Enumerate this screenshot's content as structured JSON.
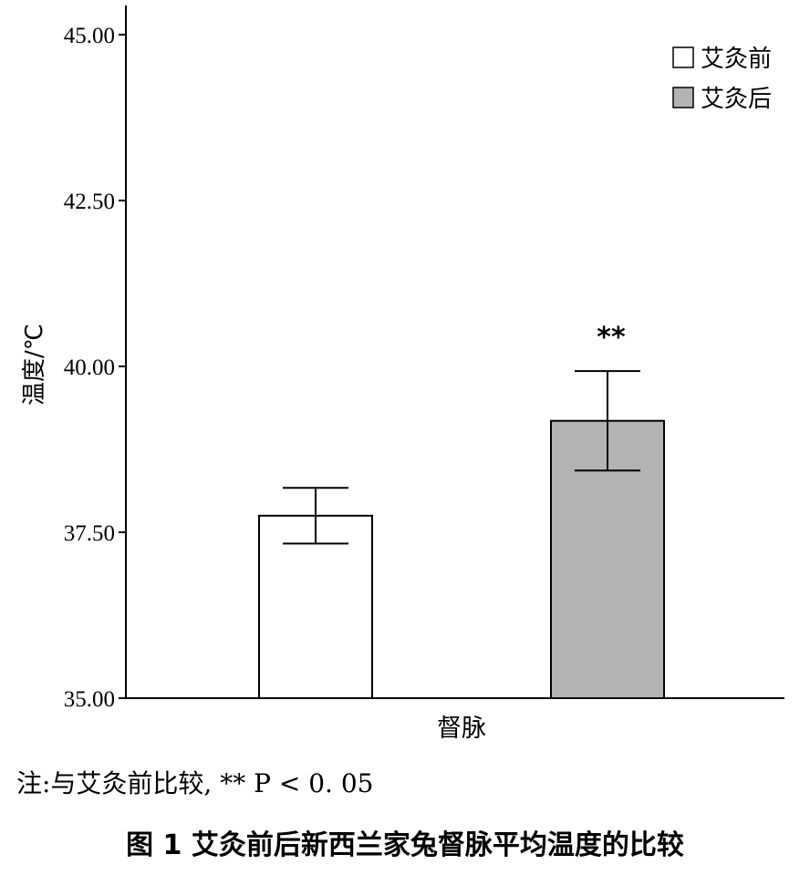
{
  "chart_data": {
    "type": "bar",
    "categories": [
      "督脉"
    ],
    "series": [
      {
        "name": "艾灸前",
        "values": [
          37.75
        ],
        "error": [
          0.42
        ],
        "color": "#ffffff"
      },
      {
        "name": "艾灸后",
        "values": [
          39.18
        ],
        "error": [
          0.75
        ],
        "color": "#b3b3b3"
      }
    ],
    "ylabel": "温度/℃",
    "ylim": [
      35.0,
      45.0
    ],
    "yticks": [
      "35.00",
      "37.50",
      "40.00",
      "42.50",
      "45.00"
    ],
    "significance": "**",
    "legend_position": "top-right",
    "grid": false
  },
  "note": "注:与艾灸前比较, ** P < 0. 05",
  "caption": "图 1  艾灸前后新西兰家兔督脉平均温度的比较"
}
